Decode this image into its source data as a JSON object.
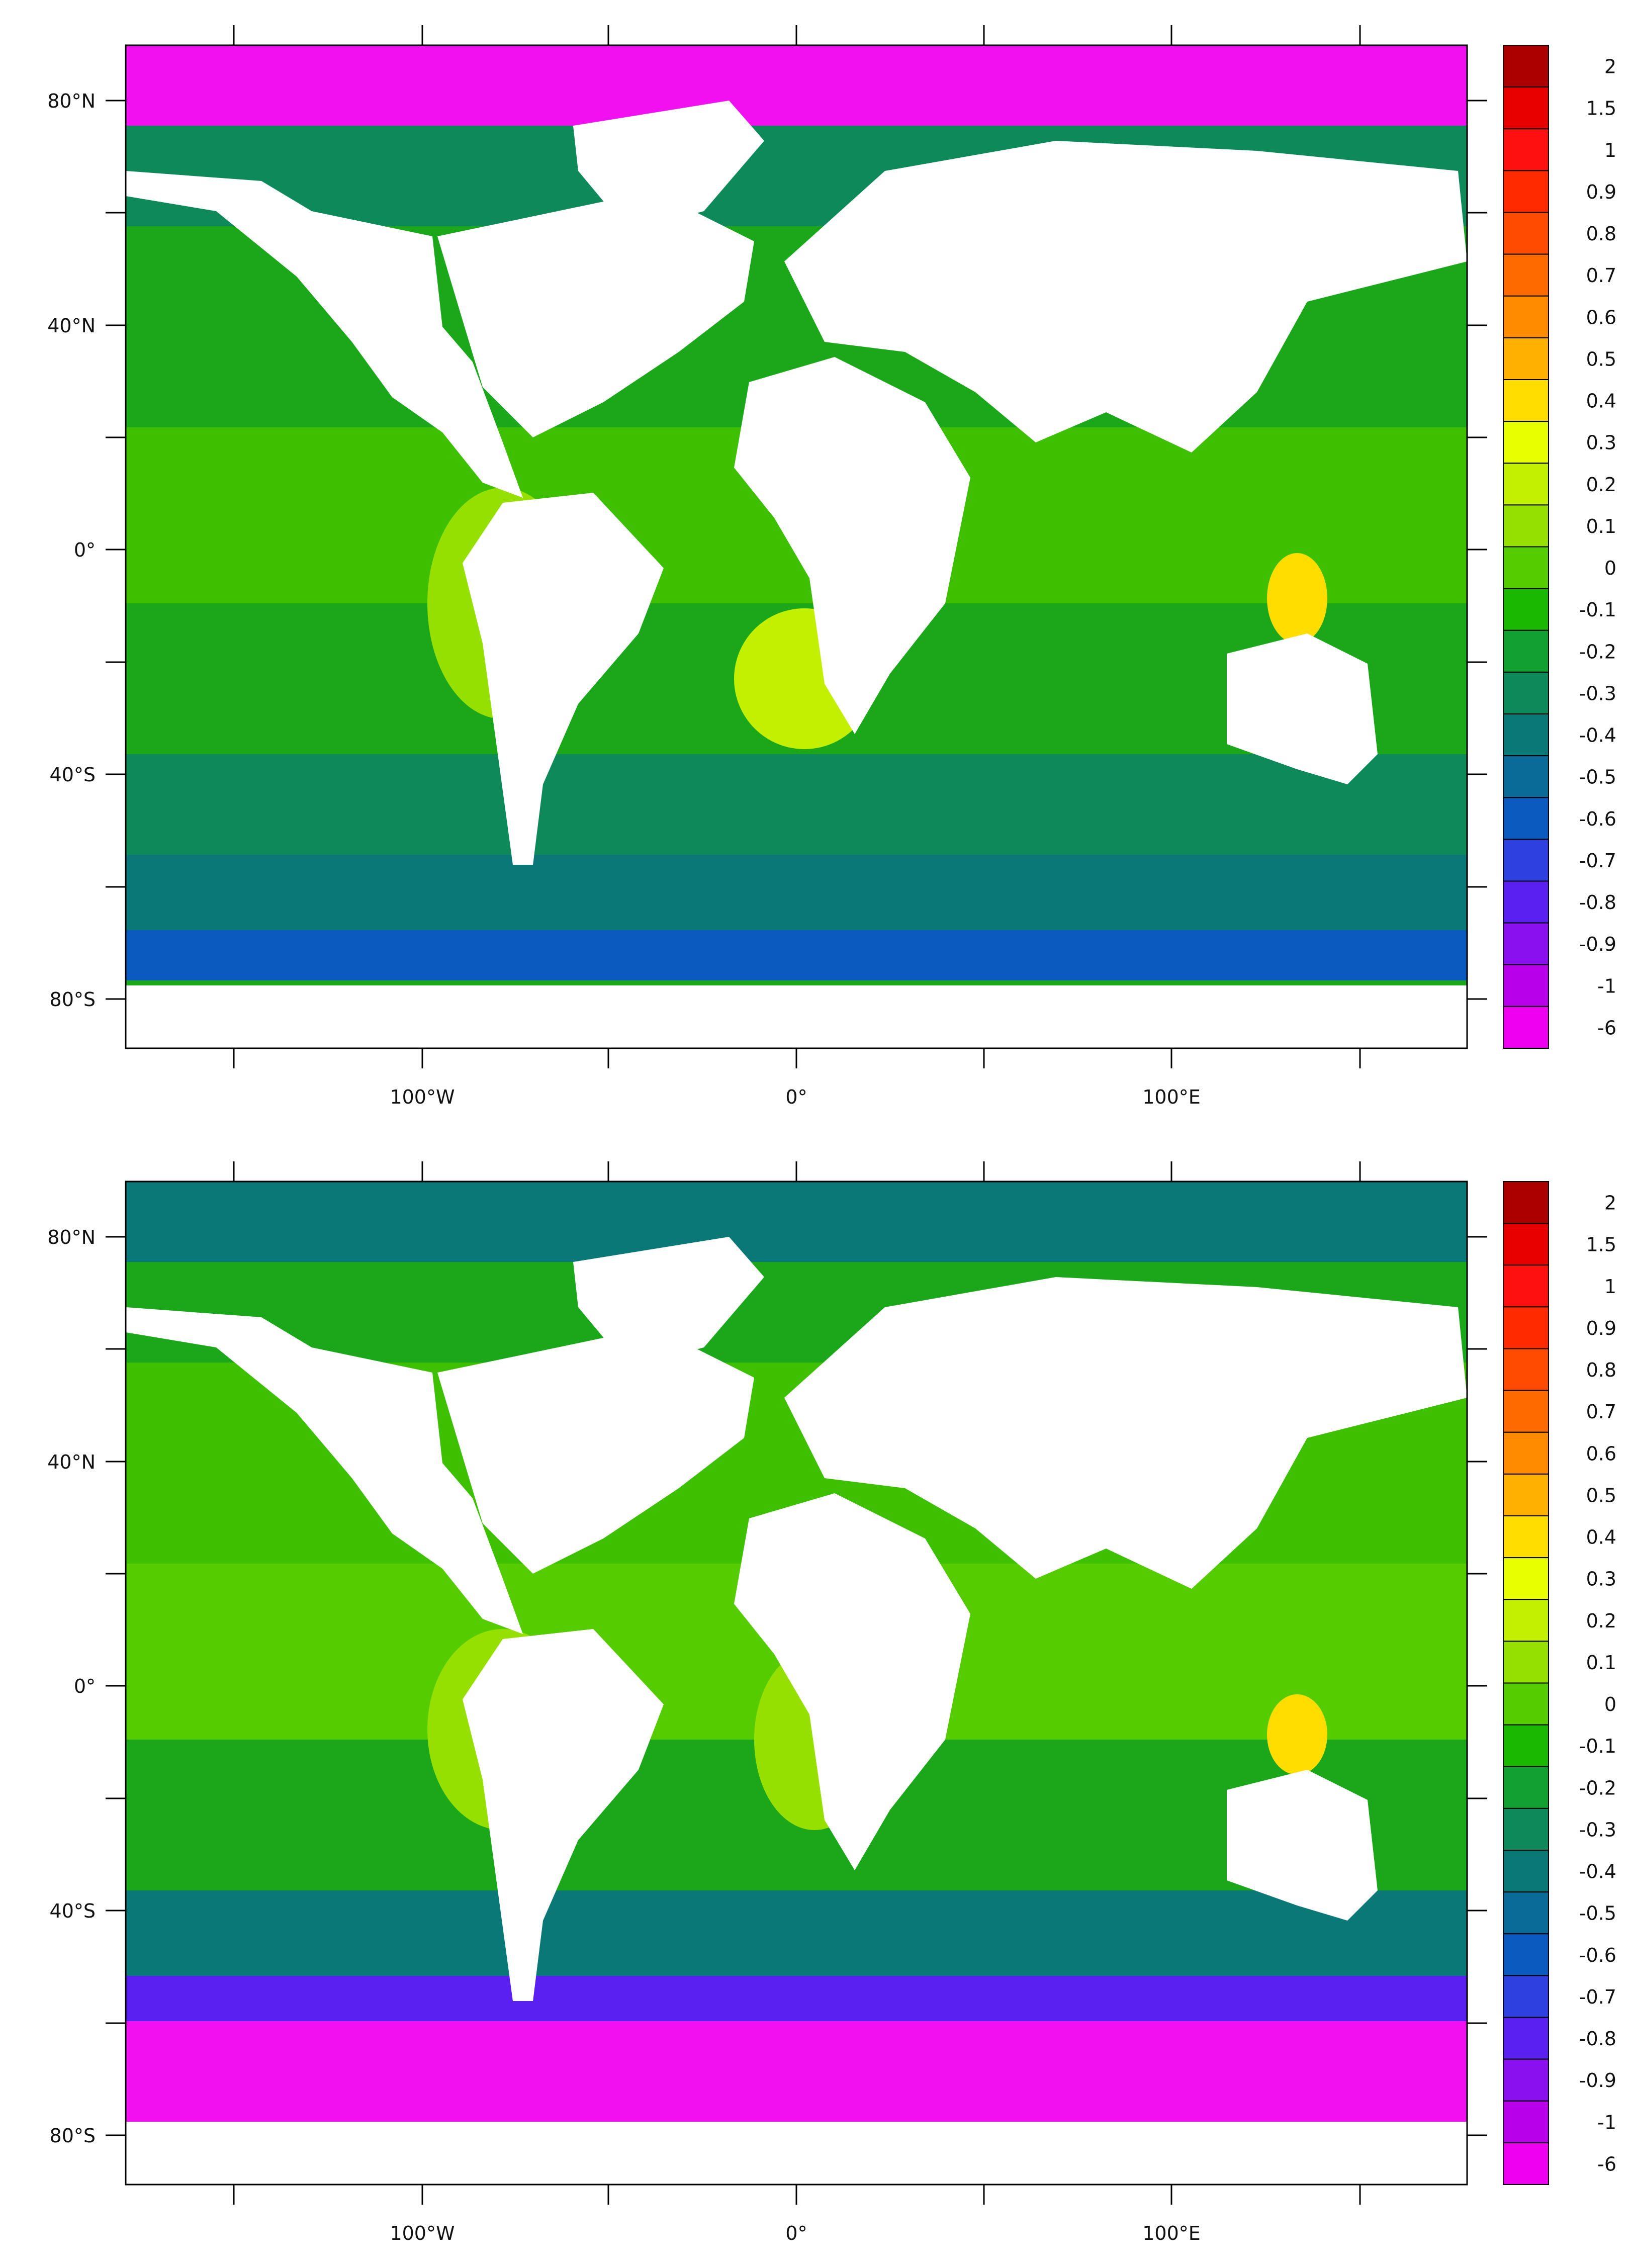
{
  "map_type": "global sea-surface anomaly map (two stacked panels)",
  "colorbar": {
    "labels": [
      "2",
      "1.5",
      "1",
      "0.9",
      "0.8",
      "0.7",
      "0.6",
      "0.5",
      "0.4",
      "0.3",
      "0.2",
      "0.1",
      "0",
      "-0.1",
      "-0.2",
      "-0.3",
      "-0.4",
      "-0.5",
      "-0.6",
      "-0.7",
      "-0.8",
      "-0.9",
      "-1",
      "-6"
    ],
    "colors": [
      "#aa0000",
      "#e80000",
      "#ff1010",
      "#ff2a00",
      "#ff4a00",
      "#ff6a00",
      "#ff8c00",
      "#ffb000",
      "#ffdd00",
      "#e8ff00",
      "#c2f000",
      "#96e000",
      "#55cc00",
      "#1ab800",
      "#12a030",
      "#0e8a5a",
      "#0b7878",
      "#0a6a98",
      "#0a5ac0",
      "#2e40e0",
      "#5a20f0",
      "#8a10f0",
      "#b800ea",
      "#f000f0"
    ]
  },
  "axes": {
    "lat_labels": [
      "80°N",
      "40°N",
      "0°",
      "40°S",
      "80°S"
    ],
    "lon_labels": [
      "100°W",
      "0°",
      "100°E"
    ]
  },
  "panels": [
    {
      "id": "top",
      "north_polar_band": "#f010f0",
      "southern_ocean": "#0b7878"
    },
    {
      "id": "bottom",
      "north_polar_band": "#0b7878",
      "southern_ocean": "#f010f0"
    }
  ]
}
